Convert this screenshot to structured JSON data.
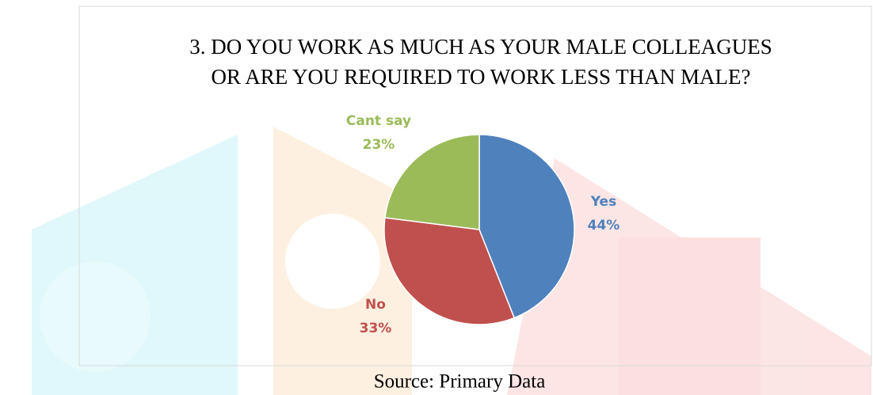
{
  "chart_data": {
    "type": "pie",
    "title": [
      "3. DO YOU WORK AS MUCH AS YOUR MALE COLLEAGUES",
      "OR ARE YOU REQUIRED TO WORK LESS THAN MALE?"
    ],
    "categories": [
      "Yes",
      "No",
      "Cant say"
    ],
    "values": [
      44,
      33,
      23
    ],
    "value_labels": [
      "44%",
      "33%",
      "23%"
    ],
    "colors": [
      "#4f81bd",
      "#c0504d",
      "#9bbb59"
    ]
  },
  "caption": "Source: Primary Data"
}
